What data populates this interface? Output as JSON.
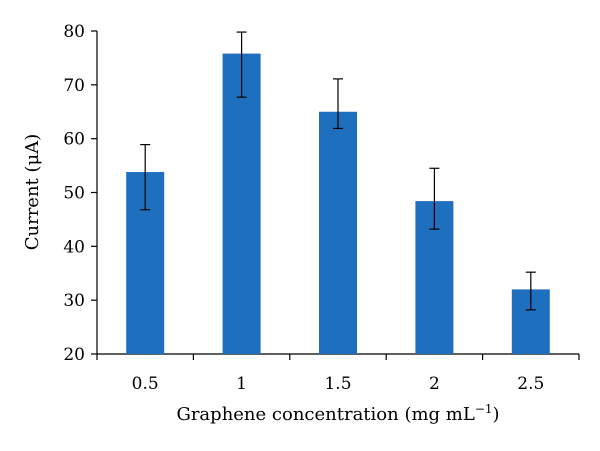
{
  "chart_data": {
    "type": "bar",
    "categories": [
      "0.5",
      "1",
      "1.5",
      "2",
      "2.5"
    ],
    "values": [
      53.8,
      75.8,
      65.0,
      48.4,
      32.0
    ],
    "error_bars": [
      {
        "low": 46.8,
        "high": 58.9
      },
      {
        "low": 67.7,
        "high": 79.8
      },
      {
        "low": 61.9,
        "high": 71.1
      },
      {
        "low": 43.2,
        "high": 54.5
      },
      {
        "low": 28.2,
        "high": 35.2
      }
    ],
    "ylim": [
      20,
      80
    ],
    "yticks": [
      20,
      30,
      40,
      50,
      60,
      70,
      80
    ],
    "ylabel": "Current (μA)",
    "xlabel_main": "Graphene concentration (mg mL",
    "xlabel_sup": "−1",
    "xlabel_close": ")",
    "bar_color": "#1f6fbf",
    "grid": false
  }
}
